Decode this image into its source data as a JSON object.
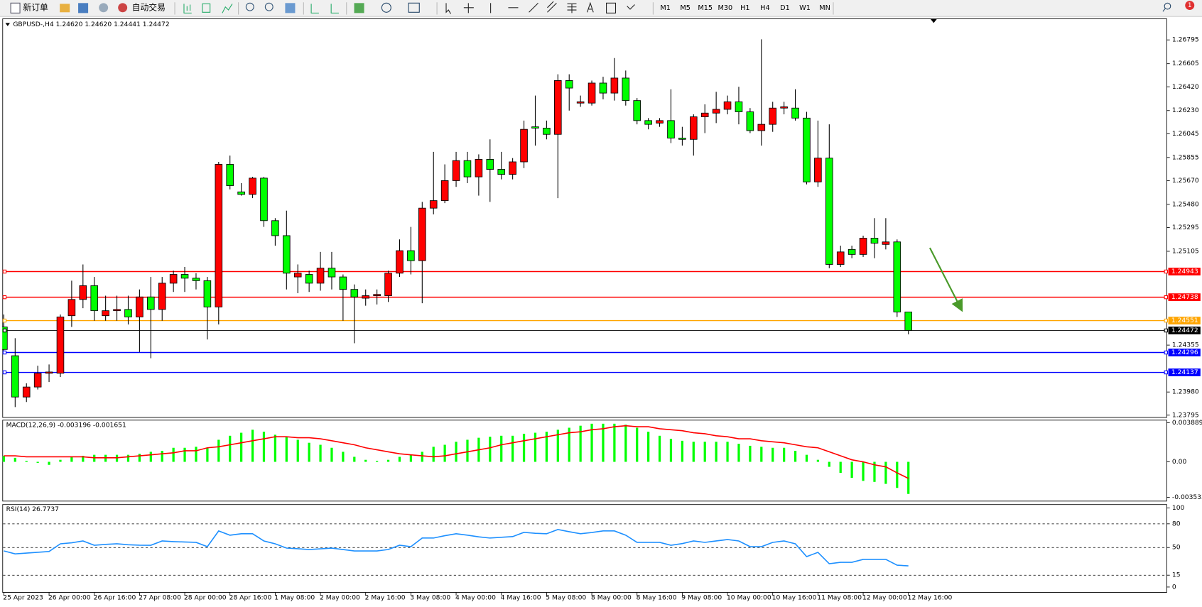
{
  "toolbar": {
    "new_order": "新订单",
    "auto_trade": "自动交易",
    "timeframes": [
      "M1",
      "M5",
      "M15",
      "M30",
      "H1",
      "H4",
      "D1",
      "W1",
      "MN"
    ],
    "badge": "1"
  },
  "chart_data": [
    {
      "type": "candlestick",
      "label": "GBPUSD-,H4  1.24620 1.24620 1.24441 1.24472",
      "categories": [
        "25 Apr 2023",
        null,
        null,
        null,
        "26 Apr 00:00",
        null,
        null,
        null,
        "26 Apr 16:00",
        null,
        null,
        null,
        "27 Apr 08:00",
        null,
        null,
        null,
        "28 Apr 00:00",
        null,
        null,
        null,
        "28 Apr 16:00",
        null,
        null,
        null,
        "1 May 08:00",
        null,
        null,
        null,
        "2 May 00:00",
        null,
        null,
        null,
        "2 May 16:00",
        null,
        null,
        null,
        "3 May 08:00",
        null,
        null,
        null,
        "4 May 00:00",
        null,
        null,
        null,
        "4 May 16:00",
        null,
        null,
        null,
        "5 May 08:00",
        null,
        null,
        null,
        "8 May 00:00",
        null,
        null,
        null,
        "8 May 16:00",
        null,
        null,
        null,
        "9 May 08:00",
        null,
        null,
        null,
        "10 May 00:00",
        null,
        null,
        null,
        "10 May 16:00",
        null,
        null,
        null,
        "11 May 08:00",
        null,
        null,
        null,
        "12 May 00:00",
        null,
        null,
        null,
        "12 May 16:00"
      ],
      "open": [
        1.245,
        1.2427,
        1.2394,
        1.2402,
        1.2413,
        1.2413,
        1.2459,
        1.2472,
        1.2483,
        1.2459,
        1.2463,
        1.2464,
        1.2458,
        1.2474,
        1.2464,
        1.2485,
        1.2492,
        1.2489,
        1.2487,
        1.2466,
        1.258,
        1.2558,
        1.2556,
        1.2569,
        1.2535,
        1.2523,
        1.249,
        1.2492,
        1.2485,
        1.2497,
        1.249,
        1.248,
        1.2473,
        1.2475,
        1.2475,
        1.2493,
        1.2511,
        1.2503,
        1.2545,
        1.2551,
        1.2567,
        1.2583,
        1.257,
        1.2584,
        1.2576,
        1.2572,
        1.2582,
        1.261,
        1.2609,
        1.2604,
        1.2647,
        1.2629,
        1.2629,
        1.2645,
        1.2637,
        1.2649,
        1.2631,
        1.2615,
        1.2613,
        1.2615,
        1.2601,
        1.26,
        1.2618,
        1.2621,
        1.2624,
        1.263,
        1.2622,
        1.2607,
        1.2612,
        1.2625,
        1.2625,
        1.2617,
        1.2566,
        1.2585,
        1.25,
        1.2512,
        1.2508,
        1.2521,
        1.2516,
        1.2518,
        1.2462
      ],
      "high": [
        1.246,
        1.2441,
        1.2405,
        1.2419,
        1.242,
        1.246,
        1.2487,
        1.25,
        1.249,
        1.2475,
        1.2475,
        1.2475,
        1.248,
        1.249,
        1.249,
        1.2495,
        1.2498,
        1.2493,
        1.249,
        1.2582,
        1.2587,
        1.2565,
        1.257,
        1.257,
        1.2537,
        1.2543,
        1.25,
        1.2495,
        1.251,
        1.251,
        1.2492,
        1.2484,
        1.248,
        1.248,
        1.2495,
        1.252,
        1.253,
        1.255,
        1.259,
        1.258,
        1.259,
        1.259,
        1.2588,
        1.26,
        1.259,
        1.2585,
        1.2615,
        1.2635,
        1.2615,
        1.2652,
        1.2652,
        1.2635,
        1.2647,
        1.265,
        1.2665,
        1.2655,
        1.2633,
        1.2617,
        1.2617,
        1.264,
        1.261,
        1.262,
        1.2628,
        1.2638,
        1.2635,
        1.2642,
        1.2625,
        1.268,
        1.263,
        1.263,
        1.264,
        1.2622,
        1.2615,
        1.2612,
        1.2515,
        1.2515,
        1.2523,
        1.2537,
        1.2537,
        1.252,
        1.2462
      ],
      "low": [
        1.243,
        1.2386,
        1.239,
        1.24,
        1.2406,
        1.241,
        1.245,
        1.2465,
        1.2455,
        1.2455,
        1.2455,
        1.2452,
        1.243,
        1.2425,
        1.2455,
        1.2478,
        1.2478,
        1.248,
        1.244,
        1.2452,
        1.256,
        1.2555,
        1.2553,
        1.253,
        1.2515,
        1.248,
        1.2477,
        1.2478,
        1.2479,
        1.248,
        1.2455,
        1.2437,
        1.2467,
        1.2468,
        1.247,
        1.249,
        1.2492,
        1.2469,
        1.254,
        1.2549,
        1.2562,
        1.2565,
        1.2555,
        1.255,
        1.2568,
        1.2568,
        1.2577,
        1.2595,
        1.26,
        1.2553,
        1.2623,
        1.2626,
        1.2627,
        1.2632,
        1.2631,
        1.2627,
        1.2612,
        1.2608,
        1.261,
        1.2597,
        1.2595,
        1.2587,
        1.2605,
        1.2613,
        1.262,
        1.2612,
        1.2605,
        1.2595,
        1.2606,
        1.262,
        1.2615,
        1.2564,
        1.2562,
        1.2497,
        1.2498,
        1.2505,
        1.2506,
        1.2505,
        1.2512,
        1.2458,
        1.24441
      ],
      "close": [
        1.2432,
        1.2394,
        1.2402,
        1.2413,
        1.2414,
        1.2458,
        1.2472,
        1.2483,
        1.2463,
        1.2463,
        1.2464,
        1.2458,
        1.2474,
        1.2464,
        1.2485,
        1.2492,
        1.2489,
        1.2487,
        1.2466,
        1.258,
        1.2563,
        1.2556,
        1.2569,
        1.2535,
        1.2523,
        1.2493,
        1.2493,
        1.2485,
        1.2497,
        1.249,
        1.248,
        1.2474,
        1.2475,
        1.2476,
        1.2493,
        1.2511,
        1.2503,
        1.2545,
        1.2551,
        1.2567,
        1.2583,
        1.257,
        1.2584,
        1.2576,
        1.2572,
        1.2582,
        1.2608,
        1.2609,
        1.2604,
        1.2647,
        1.2641,
        1.263,
        1.2645,
        1.2637,
        1.2649,
        1.2631,
        1.2615,
        1.2612,
        1.2615,
        1.2601,
        1.26,
        1.2618,
        1.2621,
        1.2624,
        1.263,
        1.2622,
        1.2607,
        1.2612,
        1.2625,
        1.2626,
        1.2617,
        1.2566,
        1.2585,
        1.25,
        1.251,
        1.2508,
        1.2521,
        1.2517,
        1.2518,
        1.2462,
        1.24472
      ],
      "up_color": "#ff0000",
      "down_color": "#00ff00",
      "wick_color": "#000000",
      "ylim": [
        1.23795,
        1.26795
      ],
      "yticks": [
        1.26795,
        1.26605,
        {
          "value": 1.2642,
          "label": "1.26420"
        },
        {
          "value": 1.2623,
          "label": "1.26230"
        },
        1.26045,
        1.25855,
        {
          "value": 1.2567,
          "label": "1.25670"
        },
        {
          "value": 1.2548,
          "label": "1.25480"
        },
        1.25295,
        1.25105,
        1.24355,
        {
          "value": 1.2398,
          "label": "1.23980"
        },
        1.23795
      ],
      "hlines": [
        {
          "value": 1.24943,
          "color": "#ff0000"
        },
        {
          "value": 1.24738,
          "color": "#ff0000"
        },
        {
          "value": 1.24551,
          "color": "#ffa500"
        },
        {
          "value": 1.24472,
          "color": "#000000"
        },
        {
          "value": 1.24296,
          "color": "#0000ff"
        },
        {
          "value": 1.24137,
          "color": "#0000ff"
        }
      ]
    },
    {
      "type": "macd",
      "label": "MACD(12,26,9) -0.003196 -0.001651",
      "histogram": [
        0.0006,
        0.0004,
        0.0001,
        -0.0001,
        -0.0003,
        0.0002,
        0.0005,
        0.0006,
        0.0007,
        0.0007,
        0.0007,
        0.0007,
        0.0008,
        0.001,
        0.0011,
        0.0014,
        0.0014,
        0.0015,
        0.0014,
        0.0022,
        0.0026,
        0.0029,
        0.0032,
        0.003,
        0.0027,
        0.0025,
        0.0022,
        0.0019,
        0.0017,
        0.0014,
        0.001,
        0.0005,
        0.0002,
        0.0001,
        0.0002,
        0.0005,
        0.0007,
        0.001,
        0.0015,
        0.0017,
        0.002,
        0.0022,
        0.0024,
        0.0025,
        0.0026,
        0.0026,
        0.0028,
        0.0029,
        0.003,
        0.0032,
        0.0034,
        0.0036,
        0.0038,
        0.0038,
        0.0038,
        0.0037,
        0.0034,
        0.003,
        0.0026,
        0.0023,
        0.0021,
        0.002,
        0.002,
        0.002,
        0.002,
        0.0018,
        0.0016,
        0.0015,
        0.0014,
        0.0014,
        0.0011,
        0.0007,
        0.0002,
        -0.0005,
        -0.0011,
        -0.0016,
        -0.0019,
        -0.002,
        -0.0022,
        -0.0026,
        -0.0032
      ],
      "signal": [
        0.0006,
        0.0006,
        0.0005,
        0.0005,
        0.0005,
        0.0005,
        0.0005,
        0.0005,
        0.0004,
        0.0004,
        0.0004,
        0.0005,
        0.0006,
        0.0007,
        0.0008,
        0.0009,
        0.0011,
        0.0011,
        0.0014,
        0.0015,
        0.0017,
        0.0019,
        0.0021,
        0.0023,
        0.0025,
        0.0025,
        0.0024,
        0.0024,
        0.0023,
        0.0021,
        0.0019,
        0.0017,
        0.0014,
        0.0012,
        0.001,
        0.0008,
        0.0007,
        0.0006,
        0.0005,
        0.0006,
        0.0008,
        0.001,
        0.0012,
        0.0014,
        0.0017,
        0.0019,
        0.0021,
        0.0023,
        0.0025,
        0.0027,
        0.0029,
        0.003,
        0.0032,
        0.0033,
        0.0035,
        0.0036,
        0.0035,
        0.0035,
        0.0033,
        0.0032,
        0.0031,
        0.0029,
        0.0028,
        0.0026,
        0.0025,
        0.0023,
        0.0023,
        0.0021,
        0.002,
        0.0019,
        0.0017,
        0.0015,
        0.0014,
        0.001,
        0.0006,
        0.0002,
        0,
        -0.0003,
        -0.0005,
        -0.0011,
        -0.001651
      ],
      "histogram_color": "#00ff00",
      "signal_color": "#ff0000",
      "ylim": [
        -0.003533,
        0.003889
      ],
      "yticks": [
        0.003889,
        {
          "value": 0,
          "label": "0.00"
        },
        -0.003533
      ]
    },
    {
      "type": "rsi",
      "label": "RSI(14) 26.7737",
      "values": [
        45.7,
        42,
        43,
        44,
        45,
        54.7,
        56,
        58.3,
        52.9,
        54,
        54.7,
        53.5,
        53,
        52.9,
        58.3,
        57.5,
        57,
        56.5,
        51.1,
        71,
        65.6,
        67.4,
        67.4,
        58.3,
        54.7,
        49.3,
        48.5,
        47.5,
        48.4,
        49.3,
        47.5,
        45.7,
        45.7,
        45.7,
        47.5,
        52.9,
        51.1,
        62,
        62,
        65,
        67.4,
        65.6,
        63.5,
        62,
        63,
        63.8,
        69.2,
        68,
        67.4,
        72.8,
        70,
        67.4,
        69,
        71,
        71,
        65.6,
        56.5,
        56.5,
        56.5,
        52.9,
        55,
        58.3,
        56.5,
        58.3,
        60.1,
        58.3,
        51.1,
        51.1,
        56.5,
        58.3,
        54.7,
        38.5,
        43.9,
        29.5,
        31.3,
        31.3,
        35,
        35,
        35,
        27.7,
        26.7737
      ],
      "color": "#1e90ff",
      "levels": [
        80,
        50,
        15
      ],
      "ylim": [
        0,
        100
      ],
      "yticks": [
        100,
        80,
        50,
        15,
        0
      ]
    }
  ]
}
